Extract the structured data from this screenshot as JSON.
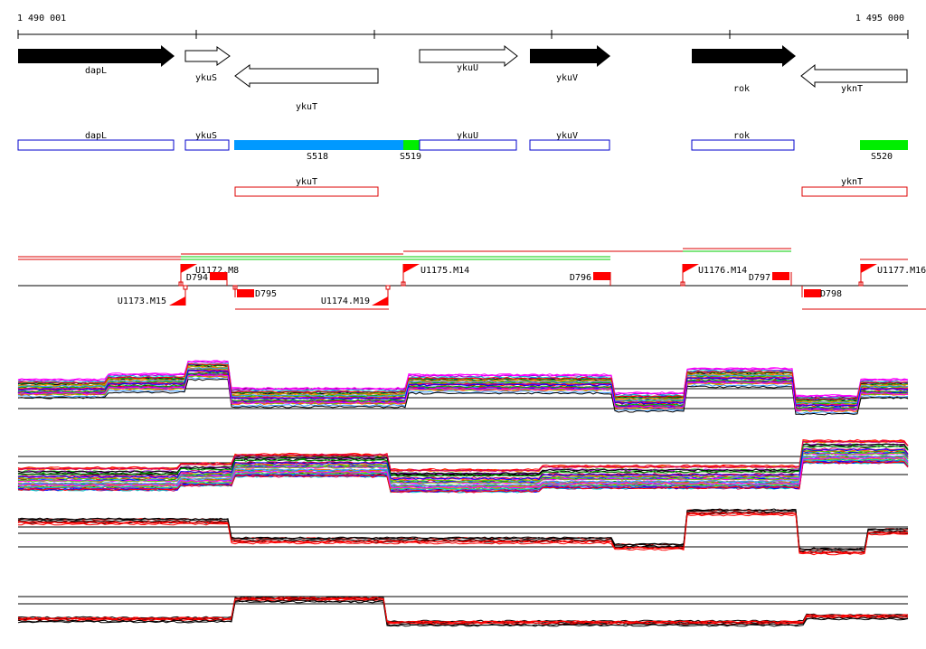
{
  "ruler": {
    "start_label": "1 490 001",
    "end_label": "1 495 000"
  },
  "genes": [
    {
      "name": "dapL",
      "strand": "+",
      "filled": true
    },
    {
      "name": "ykuS",
      "strand": "+",
      "filled": false
    },
    {
      "name": "ykuT",
      "strand": "-",
      "filled": false
    },
    {
      "name": "ykuU",
      "strand": "+",
      "filled": false
    },
    {
      "name": "ykuV",
      "strand": "+",
      "filled": true
    },
    {
      "name": "rok",
      "strand": "+",
      "filled": true
    },
    {
      "name": "yknT",
      "strand": "-",
      "filled": false
    }
  ],
  "cds_boxes": [
    "dapL",
    "ykuS",
    "ykuU",
    "ykuV",
    "rok"
  ],
  "segments": [
    {
      "label": "S518",
      "color": "#0099ff"
    },
    {
      "label": "S519",
      "color": "#00ee00"
    },
    {
      "label": "S520",
      "color": "#00ee00"
    }
  ],
  "transcript_boxes": [
    "ykuT",
    "yknT"
  ],
  "upshifts": [
    "U1172.M8",
    "U1173.M15",
    "U1174.M19",
    "U1175.M14",
    "U1176.M14",
    "U1177.M16"
  ],
  "downshifts": [
    "D794",
    "D795",
    "D796",
    "D797",
    "D798"
  ],
  "colors": {
    "gene_fill": "#000000",
    "cds_outline": "#0000cc",
    "transcript_outline": "#dd0000",
    "marker": "#ff0000"
  }
}
